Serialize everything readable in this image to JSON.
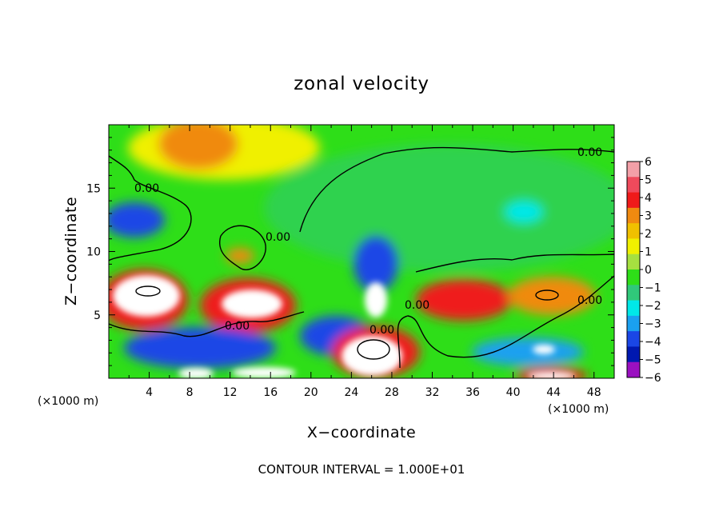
{
  "chart_data": {
    "type": "heatmap",
    "title": "zonal velocity",
    "xlabel": "X−coordinate",
    "ylabel": "Z−coordinate",
    "x_unit_note": "(×1000 m)",
    "x_unit_note_right": "(×1000 m)",
    "footnote": "CONTOUR INTERVAL = 1.000E+01",
    "xlim": [
      0,
      50
    ],
    "ylim": [
      0,
      20
    ],
    "x_ticks": [
      "4",
      "8",
      "12",
      "16",
      "20",
      "24",
      "28",
      "32",
      "36",
      "40",
      "44",
      "48"
    ],
    "y_ticks": [
      "5",
      "10",
      "15"
    ],
    "contour_labels": [
      "0.00",
      "0.00",
      "0.00",
      "0.00",
      "0.00",
      "0.00",
      "0.00"
    ],
    "colorbar": {
      "ticks": [
        "6",
        "5",
        "4",
        "3",
        "2",
        "1",
        "0",
        "−1",
        "−2",
        "−3",
        "−4",
        "−5",
        "−6"
      ],
      "colors": [
        "#f3a0a8",
        "#ef4a5c",
        "#ef1a1a",
        "#f08a10",
        "#f0c000",
        "#f0f000",
        "#a6e040",
        "#2ede18",
        "#30c87a",
        "#00e8e8",
        "#1aa0f0",
        "#1a46e6",
        "#0018b0",
        "#9a10c0"
      ]
    }
  }
}
